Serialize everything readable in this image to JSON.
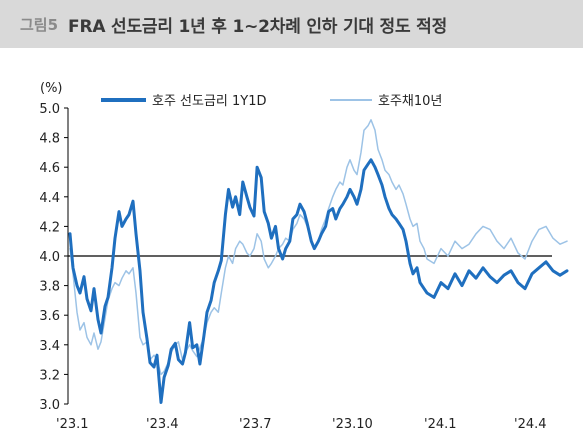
{
  "header": {
    "figure_label": "그림5",
    "title": "FRA 선도금리 1년 후 1~2차례 인하 기대 정도 적정"
  },
  "chart_data": {
    "type": "line",
    "title": "FRA 선도금리 1년 후 1~2차례 인하 기대 정도 적정",
    "ylabel": "(%)",
    "xlabel": "",
    "ylim": [
      3.0,
      5.0
    ],
    "yticks": [
      "5.0",
      "4.8",
      "4.6",
      "4.4",
      "4.2",
      "4.0",
      "3.8",
      "3.6",
      "3.4",
      "3.2",
      "3.0"
    ],
    "xticks": [
      "'23.1",
      "'23.4",
      "'23.7",
      "'23.10",
      "'24.1",
      "'24.4"
    ],
    "reference_line": 4.0,
    "grid": false,
    "legend_position": "top",
    "series": [
      {
        "name": "호주 선도금리 1Y1D",
        "color": "#1f6fbf",
        "style": "thick",
        "points": [
          [
            "2023-01-03",
            4.15
          ],
          [
            "2023-01-06",
            3.92
          ],
          [
            "2023-01-10",
            3.8
          ],
          [
            "2023-01-13",
            3.75
          ],
          [
            "2023-01-17",
            3.86
          ],
          [
            "2023-01-20",
            3.71
          ],
          [
            "2023-01-24",
            3.63
          ],
          [
            "2023-01-27",
            3.78
          ],
          [
            "2023-01-31",
            3.57
          ],
          [
            "2023-02-03",
            3.48
          ],
          [
            "2023-02-07",
            3.66
          ],
          [
            "2023-02-10",
            3.72
          ],
          [
            "2023-02-14",
            3.92
          ],
          [
            "2023-02-17",
            4.12
          ],
          [
            "2023-02-21",
            4.3
          ],
          [
            "2023-02-24",
            4.2
          ],
          [
            "2023-02-28",
            4.25
          ],
          [
            "2023-03-03",
            4.28
          ],
          [
            "2023-03-07",
            4.37
          ],
          [
            "2023-03-10",
            4.15
          ],
          [
            "2023-03-14",
            3.9
          ],
          [
            "2023-03-17",
            3.62
          ],
          [
            "2023-03-21",
            3.44
          ],
          [
            "2023-03-24",
            3.28
          ],
          [
            "2023-03-28",
            3.25
          ],
          [
            "2023-03-31",
            3.33
          ],
          [
            "2023-04-04",
            3.01
          ],
          [
            "2023-04-07",
            3.18
          ],
          [
            "2023-04-11",
            3.26
          ],
          [
            "2023-04-14",
            3.37
          ],
          [
            "2023-04-18",
            3.41
          ],
          [
            "2023-04-21",
            3.3
          ],
          [
            "2023-04-25",
            3.27
          ],
          [
            "2023-04-28",
            3.35
          ],
          [
            "2023-05-02",
            3.55
          ],
          [
            "2023-05-05",
            3.38
          ],
          [
            "2023-05-09",
            3.4
          ],
          [
            "2023-05-12",
            3.27
          ],
          [
            "2023-05-16",
            3.46
          ],
          [
            "2023-05-19",
            3.62
          ],
          [
            "2023-05-23",
            3.7
          ],
          [
            "2023-05-26",
            3.82
          ],
          [
            "2023-05-30",
            3.9
          ],
          [
            "2023-06-02",
            3.97
          ],
          [
            "2023-06-06",
            4.28
          ],
          [
            "2023-06-09",
            4.45
          ],
          [
            "2023-06-13",
            4.33
          ],
          [
            "2023-06-16",
            4.4
          ],
          [
            "2023-06-20",
            4.28
          ],
          [
            "2023-06-23",
            4.5
          ],
          [
            "2023-06-27",
            4.4
          ],
          [
            "2023-06-30",
            4.33
          ],
          [
            "2023-07-04",
            4.27
          ],
          [
            "2023-07-07",
            4.6
          ],
          [
            "2023-07-11",
            4.53
          ],
          [
            "2023-07-14",
            4.3
          ],
          [
            "2023-07-18",
            4.22
          ],
          [
            "2023-07-21",
            4.12
          ],
          [
            "2023-07-25",
            4.2
          ],
          [
            "2023-07-28",
            4.05
          ],
          [
            "2023-08-01",
            3.98
          ],
          [
            "2023-08-04",
            4.05
          ],
          [
            "2023-08-08",
            4.1
          ],
          [
            "2023-08-11",
            4.25
          ],
          [
            "2023-08-15",
            4.28
          ],
          [
            "2023-08-18",
            4.35
          ],
          [
            "2023-08-22",
            4.3
          ],
          [
            "2023-08-25",
            4.22
          ],
          [
            "2023-08-29",
            4.1
          ],
          [
            "2023-09-01",
            4.05
          ],
          [
            "2023-09-05",
            4.1
          ],
          [
            "2023-09-08",
            4.15
          ],
          [
            "2023-09-12",
            4.2
          ],
          [
            "2023-09-15",
            4.3
          ],
          [
            "2023-09-19",
            4.32
          ],
          [
            "2023-09-22",
            4.25
          ],
          [
            "2023-09-26",
            4.32
          ],
          [
            "2023-09-29",
            4.35
          ],
          [
            "2023-10-03",
            4.4
          ],
          [
            "2023-10-06",
            4.45
          ],
          [
            "2023-10-10",
            4.4
          ],
          [
            "2023-10-13",
            4.35
          ],
          [
            "2023-10-17",
            4.45
          ],
          [
            "2023-10-20",
            4.58
          ],
          [
            "2023-10-24",
            4.62
          ],
          [
            "2023-10-27",
            4.65
          ],
          [
            "2023-10-31",
            4.6
          ],
          [
            "2023-11-03",
            4.55
          ],
          [
            "2023-11-07",
            4.48
          ],
          [
            "2023-11-10",
            4.4
          ],
          [
            "2023-11-14",
            4.32
          ],
          [
            "2023-11-17",
            4.28
          ],
          [
            "2023-11-21",
            4.25
          ],
          [
            "2023-11-24",
            4.22
          ],
          [
            "2023-11-28",
            4.18
          ],
          [
            "2023-12-01",
            4.1
          ],
          [
            "2023-12-05",
            3.95
          ],
          [
            "2023-12-08",
            3.88
          ],
          [
            "2023-12-12",
            3.92
          ],
          [
            "2023-12-15",
            3.82
          ],
          [
            "2023-12-19",
            3.78
          ],
          [
            "2023-12-22",
            3.75
          ],
          [
            "2023-12-29",
            3.72
          ],
          [
            "2024-01-05",
            3.82
          ],
          [
            "2024-01-12",
            3.78
          ],
          [
            "2024-01-19",
            3.88
          ],
          [
            "2024-01-26",
            3.8
          ],
          [
            "2024-02-02",
            3.9
          ],
          [
            "2024-02-09",
            3.85
          ],
          [
            "2024-02-16",
            3.92
          ],
          [
            "2024-02-23",
            3.86
          ],
          [
            "2024-03-01",
            3.82
          ],
          [
            "2024-03-08",
            3.87
          ],
          [
            "2024-03-15",
            3.9
          ],
          [
            "2024-03-22",
            3.82
          ],
          [
            "2024-03-29",
            3.78
          ],
          [
            "2024-04-05",
            3.88
          ],
          [
            "2024-04-12",
            3.92
          ],
          [
            "2024-04-19",
            3.96
          ],
          [
            "2024-04-26",
            3.9
          ],
          [
            "2024-05-03",
            3.87
          ],
          [
            "2024-05-10",
            3.9
          ]
        ]
      },
      {
        "name": "호주채10년",
        "color": "#9dc3e6",
        "style": "thin",
        "points": [
          [
            "2023-01-03",
            4.05
          ],
          [
            "2023-01-06",
            3.88
          ],
          [
            "2023-01-10",
            3.62
          ],
          [
            "2023-01-13",
            3.5
          ],
          [
            "2023-01-17",
            3.55
          ],
          [
            "2023-01-20",
            3.45
          ],
          [
            "2023-01-24",
            3.4
          ],
          [
            "2023-01-27",
            3.48
          ],
          [
            "2023-01-31",
            3.37
          ],
          [
            "2023-02-03",
            3.42
          ],
          [
            "2023-02-07",
            3.58
          ],
          [
            "2023-02-10",
            3.7
          ],
          [
            "2023-02-14",
            3.78
          ],
          [
            "2023-02-17",
            3.82
          ],
          [
            "2023-02-21",
            3.8
          ],
          [
            "2023-02-24",
            3.85
          ],
          [
            "2023-02-28",
            3.9
          ],
          [
            "2023-03-03",
            3.88
          ],
          [
            "2023-03-07",
            3.92
          ],
          [
            "2023-03-10",
            3.75
          ],
          [
            "2023-03-14",
            3.45
          ],
          [
            "2023-03-17",
            3.4
          ],
          [
            "2023-03-21",
            3.42
          ],
          [
            "2023-03-24",
            3.3
          ],
          [
            "2023-03-28",
            3.33
          ],
          [
            "2023-03-31",
            3.3
          ],
          [
            "2023-04-04",
            3.2
          ],
          [
            "2023-04-07",
            3.22
          ],
          [
            "2023-04-11",
            3.28
          ],
          [
            "2023-04-14",
            3.35
          ],
          [
            "2023-04-18",
            3.4
          ],
          [
            "2023-04-21",
            3.42
          ],
          [
            "2023-04-25",
            3.3
          ],
          [
            "2023-04-28",
            3.35
          ],
          [
            "2023-05-02",
            3.4
          ],
          [
            "2023-05-05",
            3.36
          ],
          [
            "2023-05-09",
            3.32
          ],
          [
            "2023-05-12",
            3.38
          ],
          [
            "2023-05-16",
            3.45
          ],
          [
            "2023-05-19",
            3.55
          ],
          [
            "2023-05-23",
            3.62
          ],
          [
            "2023-05-26",
            3.65
          ],
          [
            "2023-05-30",
            3.62
          ],
          [
            "2023-06-02",
            3.75
          ],
          [
            "2023-06-06",
            3.92
          ],
          [
            "2023-06-09",
            4.0
          ],
          [
            "2023-06-13",
            3.95
          ],
          [
            "2023-06-16",
            4.05
          ],
          [
            "2023-06-20",
            4.1
          ],
          [
            "2023-06-23",
            4.08
          ],
          [
            "2023-06-27",
            4.02
          ],
          [
            "2023-06-30",
            4.0
          ],
          [
            "2023-07-04",
            4.05
          ],
          [
            "2023-07-07",
            4.15
          ],
          [
            "2023-07-11",
            4.1
          ],
          [
            "2023-07-14",
            3.98
          ],
          [
            "2023-07-18",
            3.92
          ],
          [
            "2023-07-21",
            3.95
          ],
          [
            "2023-07-25",
            4.0
          ],
          [
            "2023-07-28",
            4.05
          ],
          [
            "2023-08-01",
            4.08
          ],
          [
            "2023-08-04",
            4.12
          ],
          [
            "2023-08-08",
            4.1
          ],
          [
            "2023-08-11",
            4.18
          ],
          [
            "2023-08-15",
            4.22
          ],
          [
            "2023-08-18",
            4.28
          ],
          [
            "2023-08-22",
            4.25
          ],
          [
            "2023-08-25",
            4.2
          ],
          [
            "2023-08-29",
            4.1
          ],
          [
            "2023-09-01",
            4.05
          ],
          [
            "2023-09-05",
            4.1
          ],
          [
            "2023-09-08",
            4.18
          ],
          [
            "2023-09-12",
            4.25
          ],
          [
            "2023-09-15",
            4.32
          ],
          [
            "2023-09-19",
            4.4
          ],
          [
            "2023-09-22",
            4.45
          ],
          [
            "2023-09-26",
            4.5
          ],
          [
            "2023-09-29",
            4.48
          ],
          [
            "2023-10-03",
            4.6
          ],
          [
            "2023-10-06",
            4.65
          ],
          [
            "2023-10-10",
            4.58
          ],
          [
            "2023-10-13",
            4.55
          ],
          [
            "2023-10-17",
            4.7
          ],
          [
            "2023-10-20",
            4.85
          ],
          [
            "2023-10-24",
            4.88
          ],
          [
            "2023-10-27",
            4.92
          ],
          [
            "2023-10-31",
            4.85
          ],
          [
            "2023-11-03",
            4.72
          ],
          [
            "2023-11-07",
            4.65
          ],
          [
            "2023-11-10",
            4.58
          ],
          [
            "2023-11-14",
            4.55
          ],
          [
            "2023-11-17",
            4.5
          ],
          [
            "2023-11-21",
            4.45
          ],
          [
            "2023-11-24",
            4.48
          ],
          [
            "2023-11-28",
            4.42
          ],
          [
            "2023-12-01",
            4.35
          ],
          [
            "2023-12-05",
            4.25
          ],
          [
            "2023-12-08",
            4.2
          ],
          [
            "2023-12-12",
            4.22
          ],
          [
            "2023-12-15",
            4.1
          ],
          [
            "2023-12-19",
            4.05
          ],
          [
            "2023-12-22",
            3.98
          ],
          [
            "2023-12-29",
            3.95
          ],
          [
            "2024-01-05",
            4.05
          ],
          [
            "2024-01-12",
            4.0
          ],
          [
            "2024-01-19",
            4.1
          ],
          [
            "2024-01-26",
            4.05
          ],
          [
            "2024-02-02",
            4.08
          ],
          [
            "2024-02-09",
            4.15
          ],
          [
            "2024-02-16",
            4.2
          ],
          [
            "2024-02-23",
            4.18
          ],
          [
            "2024-03-01",
            4.1
          ],
          [
            "2024-03-08",
            4.05
          ],
          [
            "2024-03-15",
            4.12
          ],
          [
            "2024-03-22",
            4.02
          ],
          [
            "2024-03-29",
            3.98
          ],
          [
            "2024-04-05",
            4.1
          ],
          [
            "2024-04-12",
            4.18
          ],
          [
            "2024-04-19",
            4.2
          ],
          [
            "2024-04-26",
            4.12
          ],
          [
            "2024-05-03",
            4.08
          ],
          [
            "2024-05-10",
            4.1
          ]
        ]
      }
    ]
  }
}
